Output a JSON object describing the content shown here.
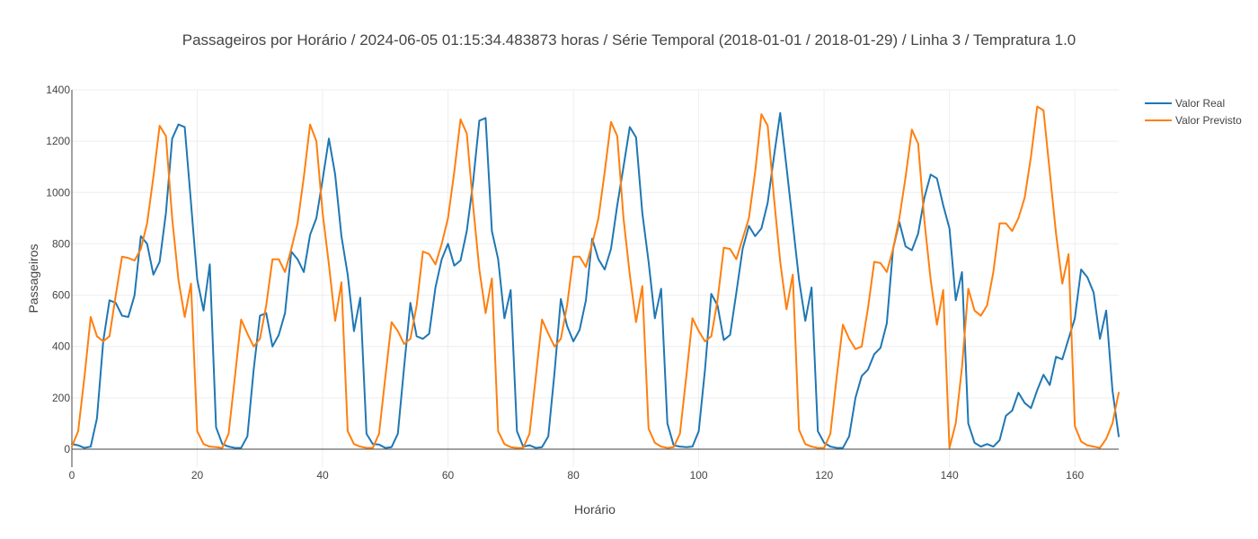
{
  "chart_data": {
    "type": "line",
    "title": "Passageiros por Horário / 2024-06-05 01:15:34.483873 horas / Série Temporal (2018-01-01 / 2018-01-29) / Linha 3 / Tempratura 1.0",
    "xlabel": "Horário",
    "ylabel": "Passageiros",
    "xlim": [
      0,
      167
    ],
    "ylim": [
      -70,
      1400
    ],
    "xticks": [
      0,
      20,
      40,
      60,
      80,
      100,
      120,
      140,
      160
    ],
    "yticks": [
      0,
      200,
      400,
      600,
      800,
      1000,
      1200,
      1400
    ],
    "grid": true,
    "legend_position": "top-right",
    "series": [
      {
        "name": "Valor Real",
        "color": "#1f77b4",
        "values": [
          20,
          15,
          5,
          10,
          120,
          420,
          580,
          570,
          520,
          515,
          600,
          830,
          800,
          680,
          730,
          920,
          1210,
          1265,
          1255,
          960,
          660,
          540,
          720,
          85,
          20,
          10,
          5,
          5,
          50,
          310,
          520,
          530,
          400,
          445,
          530,
          770,
          740,
          690,
          835,
          900,
          1050,
          1210,
          1070,
          830,
          680,
          460,
          590,
          60,
          20,
          18,
          5,
          8,
          60,
          320,
          570,
          440,
          430,
          450,
          630,
          740,
          800,
          715,
          735,
          850,
          1040,
          1280,
          1290,
          850,
          740,
          510,
          620,
          70,
          10,
          15,
          5,
          8,
          50,
          300,
          585,
          480,
          420,
          465,
          580,
          820,
          740,
          700,
          780,
          950,
          1100,
          1255,
          1215,
          920,
          730,
          510,
          625,
          100,
          15,
          10,
          8,
          10,
          70,
          310,
          605,
          560,
          425,
          445,
          610,
          780,
          870,
          830,
          860,
          960,
          1140,
          1310,
          1100,
          880,
          660,
          500,
          630,
          70,
          25,
          10,
          5,
          5,
          50,
          200,
          285,
          310,
          370,
          395,
          490,
          780,
          885,
          790,
          775,
          840,
          980,
          1070,
          1055,
          950,
          860,
          580,
          690,
          100,
          25,
          10,
          20,
          10,
          35,
          130,
          150,
          220,
          180,
          160,
          230,
          290,
          250,
          360,
          350,
          430,
          510,
          700,
          670,
          610,
          430,
          540,
          230,
          50
        ]
      },
      {
        "name": "Valor Previsto",
        "color": "#ff7f0e",
        "values": [
          10,
          70,
          280,
          515,
          440,
          420,
          440,
          600,
          750,
          745,
          735,
          780,
          880,
          1060,
          1260,
          1220,
          900,
          660,
          515,
          645,
          70,
          20,
          10,
          8,
          5,
          60,
          280,
          505,
          450,
          400,
          430,
          560,
          740,
          740,
          690,
          780,
          880,
          1060,
          1265,
          1200,
          920,
          720,
          500,
          650,
          70,
          20,
          10,
          5,
          5,
          60,
          280,
          495,
          460,
          410,
          430,
          560,
          770,
          760,
          720,
          800,
          900,
          1080,
          1285,
          1230,
          950,
          700,
          530,
          665,
          70,
          20,
          8,
          5,
          5,
          60,
          280,
          505,
          450,
          400,
          430,
          560,
          750,
          750,
          710,
          800,
          900,
          1080,
          1275,
          1220,
          900,
          680,
          495,
          635,
          80,
          25,
          10,
          5,
          8,
          60,
          280,
          510,
          460,
          420,
          440,
          580,
          785,
          780,
          740,
          820,
          900,
          1080,
          1305,
          1260,
          980,
          730,
          545,
          680,
          75,
          20,
          10,
          5,
          5,
          60,
          280,
          485,
          430,
          390,
          400,
          550,
          730,
          725,
          690,
          780,
          900,
          1060,
          1245,
          1190,
          890,
          660,
          485,
          620,
          5,
          100,
          320,
          625,
          540,
          520,
          560,
          690,
          880,
          880,
          850,
          900,
          980,
          1140,
          1335,
          1320,
          1080,
          840,
          645,
          760,
          90,
          30,
          15,
          10,
          5,
          40,
          100,
          220
        ]
      }
    ]
  }
}
